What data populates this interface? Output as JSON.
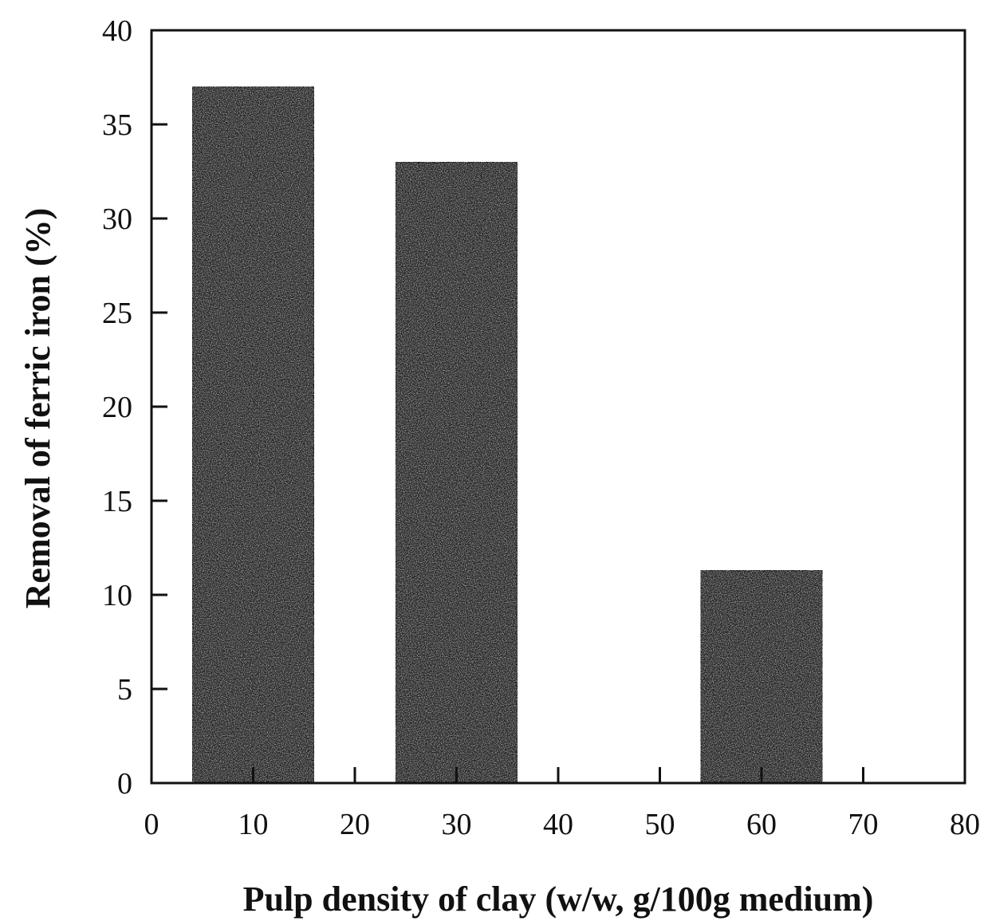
{
  "chart_data": {
    "type": "bar",
    "title": "",
    "xlabel": "Pulp density of clay (w/w, g/100g medium)",
    "ylabel": "Removal of ferric iron (%)",
    "x": [
      10,
      30,
      60
    ],
    "values": [
      37,
      33,
      11.3
    ],
    "bar_width": 12,
    "xlim": [
      0,
      80
    ],
    "ylim": [
      0,
      40
    ],
    "xticks": [
      0,
      10,
      20,
      30,
      40,
      50,
      60,
      70,
      80
    ],
    "yticks": [
      0,
      5,
      10,
      15,
      20,
      25,
      30,
      35,
      40
    ],
    "grid": false,
    "legend": "none",
    "bar_color": "#262626"
  }
}
